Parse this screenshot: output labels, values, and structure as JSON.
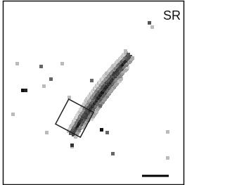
{
  "label": "SR"
}
